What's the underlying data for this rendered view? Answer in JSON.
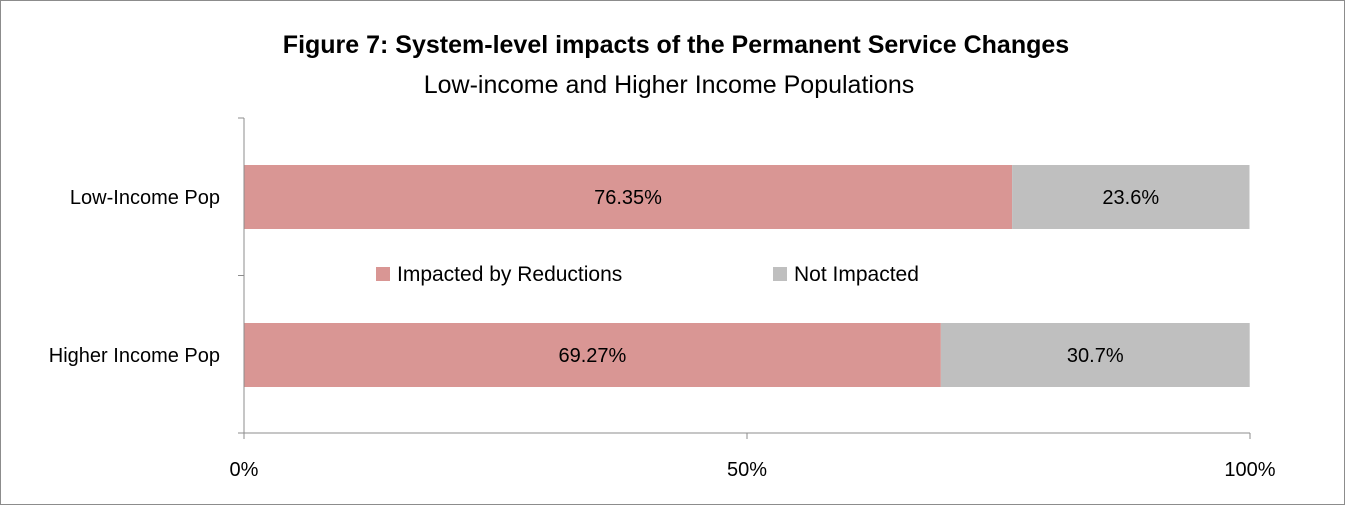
{
  "chart_data": {
    "type": "bar",
    "orientation": "horizontal",
    "stacked": true,
    "title": "Figure 7: System-level impacts of the Permanent Service Changes",
    "subtitle": "Low-income and Higher Income Populations",
    "categories": [
      "Low-Income Pop",
      "Higher Income Pop"
    ],
    "series": [
      {
        "name": "Impacted by Reductions",
        "color": "#d99694",
        "values": [
          76.35,
          69.27
        ],
        "labels": [
          "76.35%",
          "69.27%"
        ]
      },
      {
        "name": "Not Impacted",
        "color": "#bfbfbf",
        "values": [
          23.6,
          30.7
        ],
        "labels": [
          "23.6%",
          "30.7%"
        ]
      }
    ],
    "xlim": [
      0,
      100
    ],
    "xticks": [
      0,
      50,
      100
    ],
    "xtick_labels": [
      "0%",
      "50%",
      "100%"
    ],
    "xlabel": "",
    "ylabel": "",
    "grid": false,
    "legend_position": "center"
  }
}
